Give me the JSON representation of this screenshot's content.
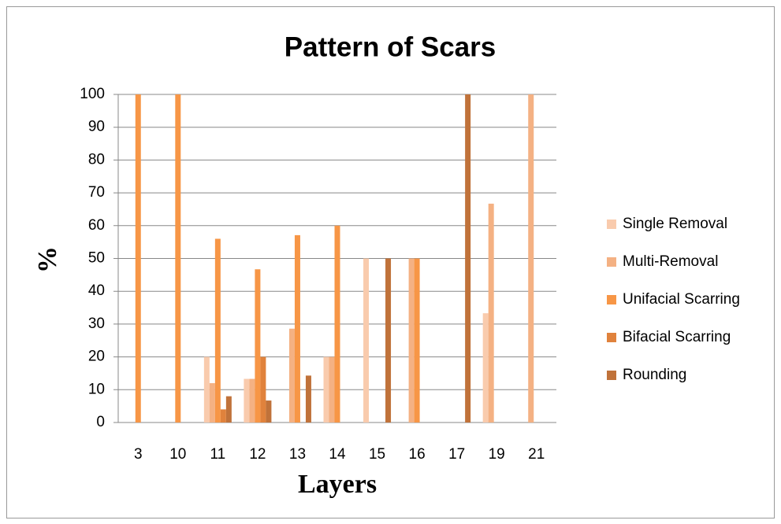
{
  "chart_data": {
    "type": "bar",
    "title": "Pattern of Scars",
    "x_label": "Layers",
    "y_label": "%",
    "categories": [
      "3",
      "10",
      "11",
      "12",
      "13",
      "14",
      "15",
      "16",
      "17",
      "19",
      "21"
    ],
    "series": [
      {
        "name": "Single Removal",
        "color": "#f9cbad",
        "values": [
          0,
          0,
          20,
          13.3,
          0,
          20,
          50,
          0,
          0,
          33.3,
          0
        ]
      },
      {
        "name": "Multi-Removal",
        "color": "#f4b183",
        "values": [
          0,
          0,
          12,
          13.3,
          28.6,
          20,
          0,
          50,
          0,
          66.7,
          100
        ]
      },
      {
        "name": "Unifacial Scarring",
        "color": "#f79646",
        "values": [
          100,
          100,
          56,
          46.7,
          57.1,
          60,
          0,
          50,
          0,
          0,
          0
        ]
      },
      {
        "name": "Bifacial Scarring",
        "color": "#e0823c",
        "values": [
          0,
          0,
          4,
          20,
          0,
          0,
          0,
          0,
          0,
          0,
          0
        ]
      },
      {
        "name": "Rounding",
        "color": "#c0723a",
        "values": [
          0,
          0,
          8,
          6.7,
          14.3,
          0,
          50,
          0,
          100,
          0,
          0
        ]
      }
    ],
    "ylim": [
      0,
      100
    ],
    "yticks": [
      0,
      10,
      20,
      30,
      40,
      50,
      60,
      70,
      80,
      90,
      100
    ],
    "grid": true,
    "legend": "right"
  }
}
